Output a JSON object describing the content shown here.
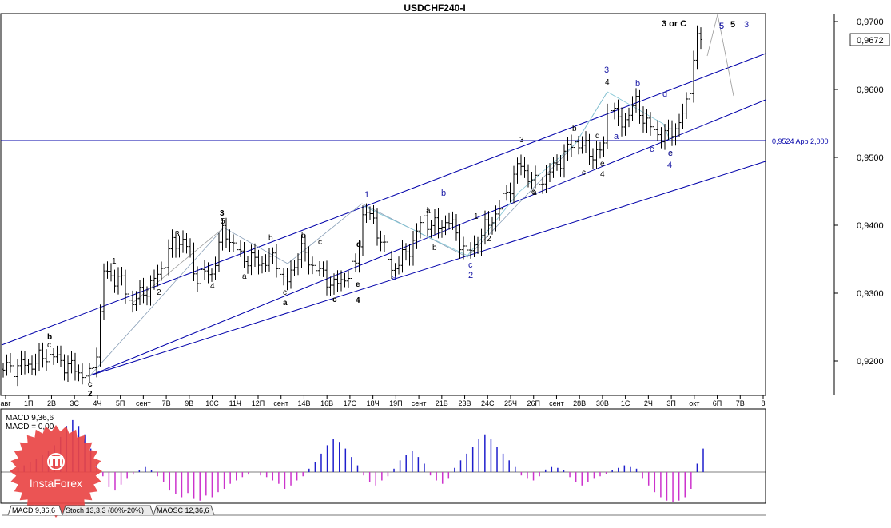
{
  "chart_data": {
    "type": "ohlc",
    "title": "USDCHF240-I",
    "price_axis": {
      "ticks": [
        "0,9700",
        "0,9600",
        "0,9500",
        "0,9400",
        "0,9300",
        "0,9200"
      ],
      "tick_values": [
        0.97,
        0.96,
        0.95,
        0.94,
        0.93,
        0.92
      ],
      "range": [
        0.9151,
        0.9722
      ],
      "current_price": "0,9672",
      "current_value": 0.9672
    },
    "time_axis": {
      "labels": [
        "авг",
        "1П",
        "2В",
        "3С",
        "4Ч",
        "5П",
        "сент",
        "7В",
        "9В",
        "10С",
        "11Ч",
        "12П",
        "сент",
        "14В",
        "16В",
        "17С",
        "18Ч",
        "19П",
        "сент",
        "21В",
        "23В",
        "24С",
        "25Ч",
        "26П",
        "сент",
        "28В",
        "30В",
        "1С",
        "2Ч",
        "3П",
        "окт",
        "6П",
        "7В",
        "8"
      ]
    },
    "horizontal_line": {
      "value": 0.9524,
      "label": "0,9524 App 2,000"
    },
    "wave_labels": {
      "black": [
        "b",
        "c",
        "2",
        "c",
        "1",
        "2",
        "3",
        "4",
        "3",
        "5",
        "a",
        "b",
        "c",
        "a",
        "b",
        "c",
        "d",
        "e",
        "c",
        "4",
        "1",
        "2",
        "3",
        "b",
        "d",
        "e",
        "c",
        "4",
        "3 or C",
        "5",
        "a",
        "b",
        "c",
        "e",
        "4",
        "a"
      ],
      "blue": [
        "1",
        "a",
        "b",
        "c",
        "2",
        "3",
        "5",
        "a",
        "b",
        "c",
        "d",
        "e",
        "4",
        "5",
        "3"
      ]
    },
    "indicator": {
      "name": "MACD 9,36,6",
      "line_label": "MACD = 0,00",
      "histogram": [
        0.02,
        0.05,
        0.08,
        0.12,
        0.16,
        0.2,
        0.25,
        0.32,
        0.42,
        0.55,
        0.62,
        0.55,
        0.45,
        0.28,
        0.12,
        -0.05,
        -0.18,
        -0.22,
        -0.15,
        -0.08,
        -0.03,
        0.02,
        0.06,
        0.02,
        -0.05,
        -0.12,
        -0.22,
        -0.26,
        -0.3,
        -0.25,
        -0.32,
        -0.34,
        -0.28,
        -0.3,
        -0.24,
        -0.2,
        -0.14,
        -0.1,
        -0.06,
        -0.03,
        0.0,
        -0.04,
        -0.06,
        -0.1,
        -0.14,
        -0.2,
        -0.16,
        -0.1,
        -0.05,
        0.04,
        0.12,
        0.22,
        0.32,
        0.4,
        0.36,
        0.28,
        0.18,
        0.08,
        -0.04,
        -0.12,
        -0.16,
        -0.1,
        -0.05,
        0.04,
        0.14,
        0.2,
        0.25,
        0.18,
        0.1,
        -0.04,
        -0.1,
        -0.14,
        -0.08,
        0.05,
        0.14,
        0.22,
        0.3,
        0.4,
        0.45,
        0.4,
        0.3,
        0.22,
        0.14,
        0.06,
        -0.04,
        -0.08,
        -0.1,
        -0.05,
        0.03,
        0.06,
        0.05,
        0.02,
        -0.06,
        -0.12,
        -0.16,
        -0.12,
        -0.08,
        -0.05,
        -0.02,
        0.02,
        0.05,
        0.08,
        0.06,
        0.04,
        -0.08,
        -0.16,
        -0.24,
        -0.3,
        -0.34,
        -0.36,
        -0.34,
        -0.3,
        -0.2,
        0.1,
        0.28
      ]
    },
    "tabs": [
      "MACD 9,36,6",
      "Stoch 13,3,3 (80%-20%)",
      "MAOSC 12,36,6"
    ],
    "watermark": {
      "brand": "InstaForex"
    },
    "colors": {
      "candle": "#000000",
      "channel": "#0000aa",
      "wave_blue": "#1a1aa6",
      "hist_pos": "#1e1ecc",
      "hist_neg": "#cc33cc",
      "watermark": "#e94545"
    }
  }
}
